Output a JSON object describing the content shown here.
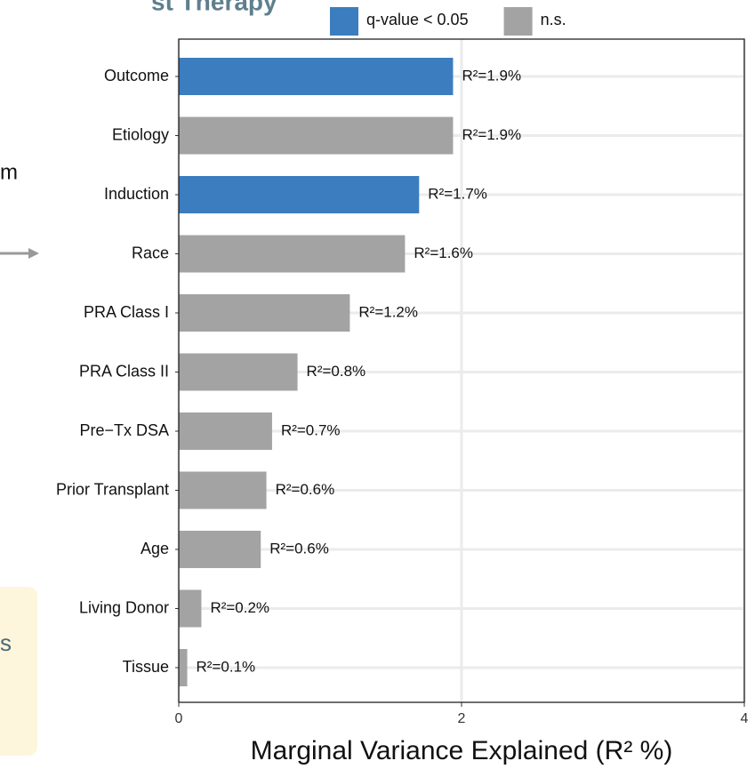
{
  "slide_fragments": {
    "heading": "st Therapy",
    "left_text": "m",
    "callout_text": "s"
  },
  "chart_data": {
    "type": "hbar",
    "xlabel": "Marginal Variance Explained (R² %)",
    "categories": [
      "Outcome",
      "Etiology",
      "Induction",
      "Race",
      "PRA Class I",
      "PRA Class II",
      "Pre−Tx DSA",
      "Prior Transplant",
      "Age",
      "Living Donor",
      "Tissue"
    ],
    "series": [
      {
        "name": "q-value < 0.05",
        "color": "#3b7dbf",
        "values": [
          1.94,
          null,
          1.7,
          null,
          null,
          null,
          null,
          null,
          null,
          null,
          null
        ],
        "value_labels": [
          "R²=1.9%",
          null,
          "R²=1.7%",
          null,
          null,
          null,
          null,
          null,
          null,
          null,
          null
        ]
      },
      {
        "name": "n.s.",
        "color": "#a3a3a3",
        "values": [
          null,
          1.94,
          null,
          1.6,
          1.21,
          0.84,
          0.66,
          0.62,
          0.58,
          0.16,
          0.06
        ],
        "value_labels": [
          null,
          "R²=1.9%",
          null,
          "R²=1.6%",
          "R²=1.2%",
          "R²=0.8%",
          "R²=0.7%",
          "R²=0.6%",
          "R²=0.6%",
          "R²=0.2%",
          "R²=0.1%"
        ]
      }
    ],
    "xlim": [
      0,
      4
    ],
    "xticks": [
      0,
      2,
      4
    ],
    "grid": true,
    "legend": "top"
  }
}
